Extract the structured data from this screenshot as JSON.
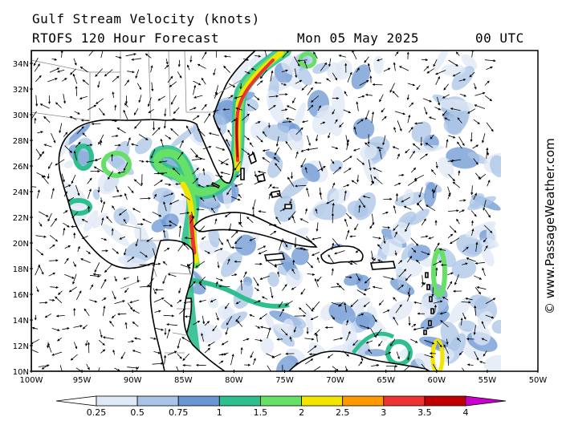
{
  "header": {
    "title": "Gulf Stream Velocity (knots)",
    "model": "RTOFS 120 Hour Forecast",
    "date": "Mon 05 May 2025",
    "time": "00 UTC"
  },
  "copyright": "© www.PassageWeather.com",
  "axes": {
    "lat_labels": [
      "34N",
      "32N",
      "30N",
      "28N",
      "26N",
      "24N",
      "22N",
      "20N",
      "18N",
      "16N",
      "14N",
      "12N",
      "10N"
    ],
    "lon_labels": [
      "100W",
      "95W",
      "90W",
      "85W",
      "80W",
      "75W",
      "70W",
      "65W",
      "60W",
      "55W",
      "50W"
    ]
  },
  "legend": {
    "tick_labels": [
      "0.25",
      "0.5",
      "0.75",
      "1",
      "1.5",
      "2",
      "2.5",
      "3",
      "3.5",
      "4"
    ],
    "colors": [
      "#ffffff",
      "#dfe8f5",
      "#a9c4e6",
      "#6b96d3",
      "#2fbf8f",
      "#66e066",
      "#f2e600",
      "#ff9900",
      "#ee3333",
      "#c00000",
      "#cc00cc"
    ]
  }
}
